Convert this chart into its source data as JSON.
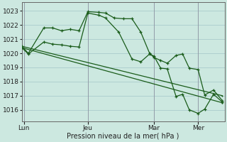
{
  "background_color": "#cce8e0",
  "grid_color": "#aacccc",
  "line_color_dark": "#1a5c1a",
  "ylabel": "Pression niveau de la mer( hPa )",
  "xtick_labels": [
    "Lun",
    "Jeu",
    "Mar",
    "Mer"
  ],
  "xtick_positions": [
    1,
    30,
    60,
    80
  ],
  "ylim": [
    1015.2,
    1023.6
  ],
  "yticks": [
    1016,
    1017,
    1018,
    1019,
    1020,
    1021,
    1022,
    1023
  ],
  "xlim": [
    0,
    92
  ],
  "series1_x": [
    0,
    3,
    10,
    14,
    18,
    22,
    26,
    30,
    35,
    38,
    42,
    46,
    50,
    54,
    58,
    60,
    63,
    66,
    70,
    73,
    76,
    80,
    83,
    87,
    91
  ],
  "series1_y": [
    1020.5,
    1020.0,
    1021.8,
    1021.8,
    1021.6,
    1021.7,
    1021.6,
    1022.95,
    1022.9,
    1022.85,
    1022.5,
    1022.45,
    1022.45,
    1021.5,
    1020.0,
    1019.7,
    1019.5,
    1019.3,
    1019.85,
    1019.95,
    1018.95,
    1018.85,
    1017.05,
    1017.4,
    1016.65
  ],
  "series2_x": [
    0,
    91
  ],
  "series2_y": [
    1020.5,
    1017.0
  ],
  "series3_x": [
    0,
    91
  ],
  "series3_y": [
    1020.4,
    1016.5
  ],
  "series4_x": [
    0,
    3,
    10,
    14,
    18,
    22,
    26,
    30,
    35,
    38,
    44,
    50,
    54,
    58,
    60,
    63,
    66,
    70,
    73,
    76,
    80,
    83,
    87,
    91
  ],
  "series4_y": [
    1020.4,
    1019.95,
    1020.8,
    1020.65,
    1020.6,
    1020.5,
    1020.45,
    1022.85,
    1022.7,
    1022.5,
    1021.5,
    1019.6,
    1019.4,
    1019.95,
    1019.8,
    1018.95,
    1018.9,
    1016.95,
    1017.1,
    1016.0,
    1015.75,
    1016.05,
    1017.1,
    1016.55
  ]
}
